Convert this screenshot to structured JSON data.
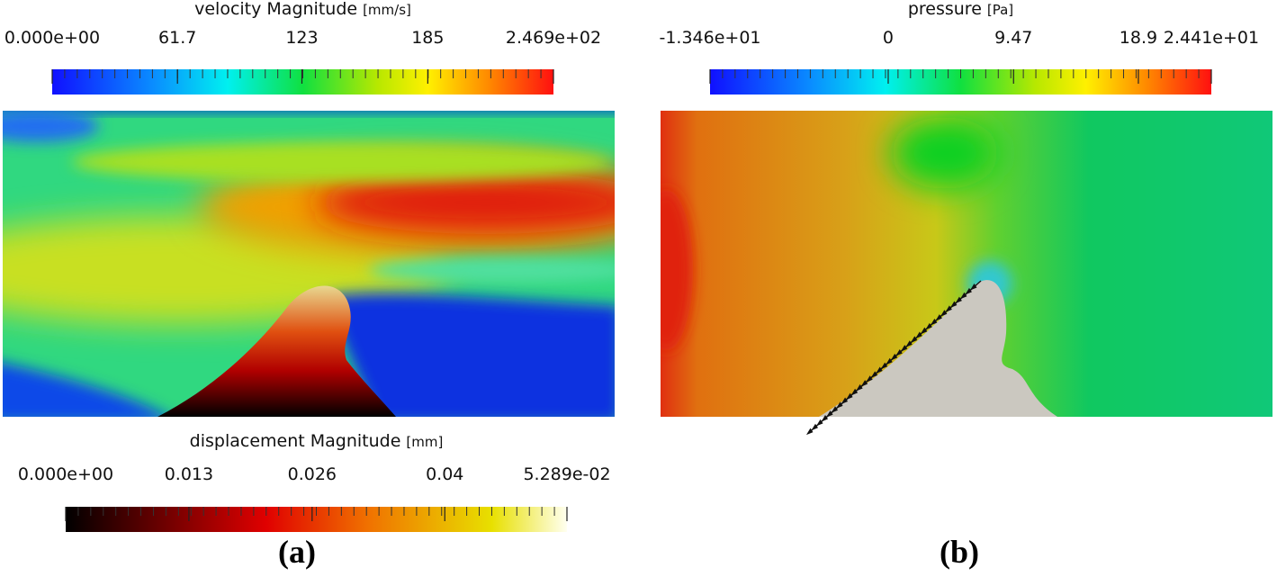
{
  "colorbars": [
    {
      "title": "velocity Magnitude",
      "unit": "[mm/s]",
      "colormap": "jet",
      "lim": [
        0,
        246.9
      ],
      "ticks": [
        {
          "value": 0,
          "label": "0.000e+00"
        },
        61.7,
        123,
        185,
        {
          "value": 246.9,
          "label": "2.469e+02"
        }
      ]
    },
    {
      "title": "displacement Magnitude",
      "unit": "[mm]",
      "colormap": "heat",
      "lim": [
        0,
        0.05289
      ],
      "ticks": [
        {
          "value": 0,
          "label": "0.000e+00"
        },
        0.013,
        0.026,
        0.04,
        {
          "value": 0.05289,
          "label": "5.289e-02"
        }
      ]
    },
    {
      "title": "pressure",
      "unit": "[Pa]",
      "colormap": "jet",
      "lim": [
        -13.46,
        24.41
      ],
      "ticks": [
        {
          "value": -13.46,
          "label": "-1.346e+01"
        },
        0,
        9.47,
        18.9,
        {
          "value": 24.41,
          "label": "2.441e+01"
        }
      ]
    }
  ],
  "panels": [
    "(a)",
    "(b)"
  ]
}
